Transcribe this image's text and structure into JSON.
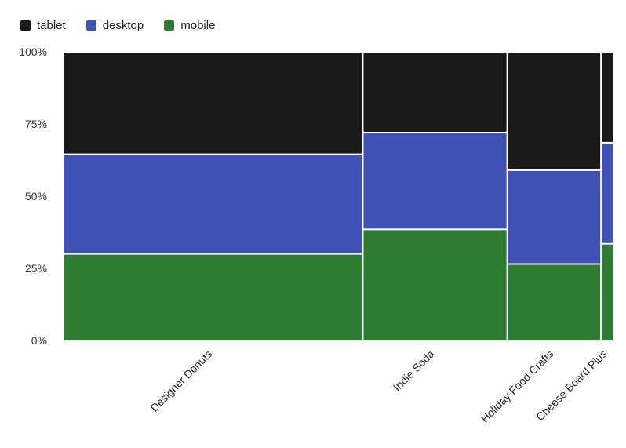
{
  "chart_data": {
    "type": "mosaic",
    "categories": [
      "Designer Donuts",
      "Indie Soda",
      "Holiday Food Crafts",
      "Cheese Board Plus"
    ],
    "category_widths": [
      0.544,
      0.262,
      0.17,
      0.024
    ],
    "series": [
      {
        "name": "mobile",
        "color": "#2e7d32",
        "values": [
          0.3,
          0.385,
          0.265,
          0.335
        ]
      },
      {
        "name": "desktop",
        "color": "#3f51b5",
        "values": [
          0.345,
          0.335,
          0.325,
          0.35
        ]
      },
      {
        "name": "tablet",
        "color": "#1a1a1a",
        "values": [
          0.355,
          0.28,
          0.41,
          0.315
        ]
      }
    ],
    "legend_order": [
      "tablet",
      "desktop",
      "mobile"
    ],
    "y_ticks": [
      "0%",
      "25%",
      "50%",
      "75%",
      "100%"
    ],
    "ylim": [
      0,
      1
    ],
    "legend_position": "top-left",
    "grid": false
  }
}
